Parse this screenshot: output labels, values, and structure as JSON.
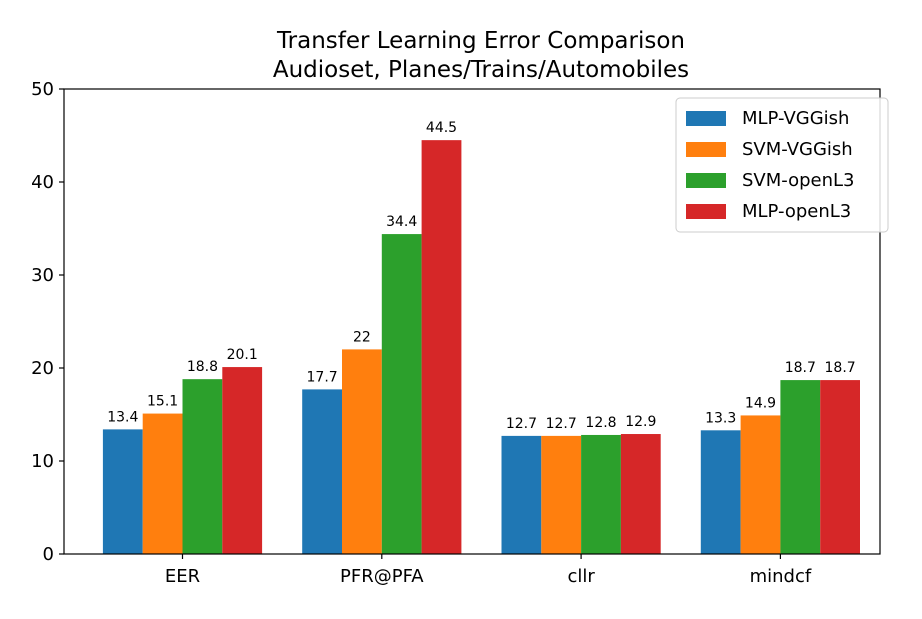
{
  "chart_data": {
    "type": "bar",
    "title": "Transfer Learning Error Comparison",
    "subtitle": "Audioset, Planes/Trains/Automobiles",
    "xlabel": "",
    "ylabel": "",
    "ylim": [
      0,
      50
    ],
    "yticks": [
      "0",
      "10",
      "20",
      "30",
      "40",
      "50"
    ],
    "categories": [
      "EER",
      "PFR@PFA",
      "cllr",
      "mindcf"
    ],
    "series": [
      {
        "name": "MLP-VGGish",
        "color": "#1f77b4",
        "values": [
          13.4,
          17.7,
          12.7,
          13.3
        ],
        "labels": [
          "13.4",
          "17.7",
          "12.7",
          "13.3"
        ]
      },
      {
        "name": "SVM-VGGish",
        "color": "#ff7f0e",
        "values": [
          15.1,
          22,
          12.7,
          14.9
        ],
        "labels": [
          "15.1",
          "22",
          "12.7",
          "14.9"
        ]
      },
      {
        "name": "SVM-openL3",
        "color": "#2ca02c",
        "values": [
          18.8,
          34.4,
          12.8,
          18.7
        ],
        "labels": [
          "18.8",
          "34.4",
          "12.8",
          "18.7"
        ]
      },
      {
        "name": "MLP-openL3",
        "color": "#d62728",
        "values": [
          20.1,
          44.5,
          12.9,
          18.7
        ],
        "labels": [
          "20.1",
          "44.5",
          "12.9",
          "18.7"
        ]
      }
    ],
    "grid": false,
    "legend_position": "top-right"
  }
}
